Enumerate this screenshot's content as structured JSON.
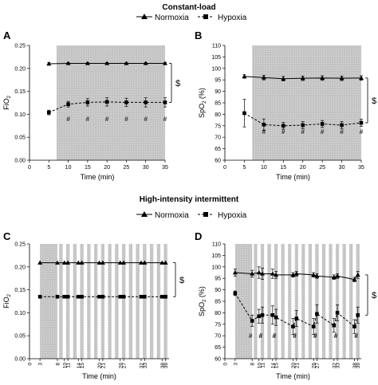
{
  "headers": {
    "constant": "Constant-load",
    "intermittent": "High-intensity intermittent"
  },
  "legend": {
    "normoxia": "Normoxia",
    "hypoxia": "Hypoxia"
  },
  "colors": {
    "ink": "#000000",
    "shade": "#c8c8c8"
  },
  "chart_data": [
    {
      "panel": "A",
      "type": "line",
      "ylabel": "FiO",
      "ylabel_sub": "2",
      "xlabel": "Time (min)",
      "xlim": [
        0,
        35
      ],
      "ylim": [
        0,
        0.25
      ],
      "xticks": [
        "0",
        "5",
        "10",
        "15",
        "20",
        "25",
        "30",
        "35"
      ],
      "xtick_values": [
        0,
        5,
        10,
        15,
        20,
        25,
        30,
        35
      ],
      "yticks": [
        "0.00",
        "0.05",
        "0.10",
        "0.15",
        "0.20",
        "0.25"
      ],
      "ytick_values": [
        0,
        0.05,
        0.1,
        0.15,
        0.2,
        0.25
      ],
      "shaded": [
        [
          7,
          35
        ]
      ],
      "x": [
        5,
        10,
        15,
        20,
        25,
        30,
        35
      ],
      "series": [
        {
          "name": "Normoxia",
          "values": [
            0.21,
            0.211,
            0.211,
            0.211,
            0.211,
            0.211,
            0.211
          ],
          "err": [
            0.003,
            0.002,
            0.002,
            0.002,
            0.002,
            0.002,
            0.002
          ]
        },
        {
          "name": "Hypoxia",
          "values": [
            0.104,
            0.122,
            0.126,
            0.127,
            0.126,
            0.126,
            0.126
          ],
          "err": [
            0.005,
            0.006,
            0.008,
            0.009,
            0.009,
            0.01,
            0.01
          ]
        }
      ],
      "hash_x": [
        10,
        15,
        20,
        25,
        30,
        35
      ],
      "hash_label": "#",
      "hash_y": 0.085,
      "bracket_label": "$"
    },
    {
      "panel": "B",
      "type": "line",
      "ylabel": "SpO",
      "ylabel_sub": "2",
      "ylabel_suffix": " (%)",
      "xlabel": "Time (min)",
      "xlim": [
        0,
        35
      ],
      "ylim": [
        60,
        110
      ],
      "xticks": [
        "0",
        "5",
        "10",
        "15",
        "20",
        "25",
        "30",
        "35"
      ],
      "xtick_values": [
        0,
        5,
        10,
        15,
        20,
        25,
        30,
        35
      ],
      "yticks": [
        "60",
        "65",
        "70",
        "75",
        "80",
        "85",
        "90",
        "95",
        "100",
        "105",
        "110"
      ],
      "ytick_values": [
        60,
        65,
        70,
        75,
        80,
        85,
        90,
        95,
        100,
        105,
        110
      ],
      "shaded": [
        [
          7,
          35
        ]
      ],
      "x": [
        5,
        10,
        15,
        20,
        25,
        30,
        35
      ],
      "series": [
        {
          "name": "Normoxia",
          "values": [
            96.5,
            96.0,
            95.5,
            95.7,
            95.8,
            95.7,
            95.8
          ],
          "err": [
            0.8,
            1.0,
            1.0,
            1.0,
            1.0,
            1.0,
            1.0
          ]
        },
        {
          "name": "Hypoxia",
          "values": [
            80.5,
            75.5,
            75.0,
            75.3,
            75.8,
            75.3,
            76.3
          ],
          "err": [
            6.0,
            2.5,
            1.5,
            1.5,
            1.5,
            1.5,
            1.5
          ]
        }
      ],
      "hash_x": [
        10,
        15,
        20,
        25,
        30,
        35
      ],
      "hash_label": "#",
      "hash_y": 71.5,
      "bracket_label": "$"
    },
    {
      "panel": "C",
      "type": "line",
      "ylabel": "FiO",
      "ylabel_sub": "2",
      "xlabel": "Time (min)",
      "xlim": [
        0,
        40
      ],
      "ylim": [
        0,
        0.25
      ],
      "xticks": [
        "0",
        "3",
        "8",
        "10",
        "11",
        "14",
        "15",
        "20",
        "21",
        "26",
        "27",
        "32",
        "33",
        "38",
        "39"
      ],
      "xtick_values": [
        0,
        3,
        8,
        10,
        11,
        14,
        15,
        20,
        21,
        26,
        27,
        32,
        33,
        38,
        39
      ],
      "yticks": [
        "0.00",
        "0.05",
        "0.10",
        "0.15",
        "0.20",
        "0.25"
      ],
      "ytick_values": [
        0,
        0.05,
        0.1,
        0.15,
        0.2,
        0.25
      ],
      "shaded": [
        [
          3,
          8
        ],
        [
          8.5,
          9.5
        ],
        [
          10.5,
          11.5
        ],
        [
          12.5,
          13.5
        ],
        [
          14.5,
          15.5
        ],
        [
          16.5,
          17.5
        ],
        [
          18.5,
          19.5
        ],
        [
          20.5,
          21.5
        ],
        [
          22.5,
          23.5
        ],
        [
          24.5,
          25.5
        ],
        [
          26.5,
          27.5
        ],
        [
          28.5,
          29.5
        ],
        [
          30.5,
          31.5
        ],
        [
          32.5,
          33.5
        ],
        [
          34.5,
          35.5
        ],
        [
          36.5,
          37.5
        ],
        [
          38.5,
          39.5
        ]
      ],
      "x": [
        3,
        8,
        10,
        11,
        14,
        15,
        20,
        21,
        26,
        27,
        32,
        33,
        38,
        39
      ],
      "series": [
        {
          "name": "Normoxia",
          "values": [
            0.209,
            0.209,
            0.209,
            0.209,
            0.209,
            0.209,
            0.209,
            0.209,
            0.209,
            0.209,
            0.209,
            0.209,
            0.209,
            0.209
          ]
        },
        {
          "name": "Hypoxia",
          "values": [
            0.135,
            0.135,
            0.135,
            0.135,
            0.135,
            0.135,
            0.135,
            0.135,
            0.135,
            0.135,
            0.135,
            0.135,
            0.135,
            0.135
          ]
        }
      ],
      "bracket_label": "$"
    },
    {
      "panel": "D",
      "type": "line",
      "ylabel": "SpO",
      "ylabel_sub": "2",
      "ylabel_suffix": " (%)",
      "xlabel": "Time (min)",
      "xlim": [
        0,
        40
      ],
      "ylim": [
        60,
        110
      ],
      "xticks": [
        "0",
        "3",
        "8",
        "10",
        "11",
        "14",
        "15",
        "20",
        "21",
        "26",
        "27",
        "32",
        "33",
        "38",
        "39"
      ],
      "xtick_values": [
        0,
        3,
        8,
        10,
        11,
        14,
        15,
        20,
        21,
        26,
        27,
        32,
        33,
        38,
        39
      ],
      "yticks": [
        "60",
        "65",
        "70",
        "75",
        "80",
        "85",
        "90",
        "95",
        "100",
        "105",
        "110"
      ],
      "ytick_values": [
        60,
        65,
        70,
        75,
        80,
        85,
        90,
        95,
        100,
        105,
        110
      ],
      "shaded": [
        [
          3,
          8
        ],
        [
          8.5,
          9.5
        ],
        [
          10.5,
          11.5
        ],
        [
          12.5,
          13.5
        ],
        [
          14.5,
          15.5
        ],
        [
          16.5,
          17.5
        ],
        [
          18.5,
          19.5
        ],
        [
          20.5,
          21.5
        ],
        [
          22.5,
          23.5
        ],
        [
          24.5,
          25.5
        ],
        [
          26.5,
          27.5
        ],
        [
          28.5,
          29.5
        ],
        [
          30.5,
          31.5
        ],
        [
          32.5,
          33.5
        ],
        [
          34.5,
          35.5
        ],
        [
          36.5,
          37.5
        ],
        [
          38.5,
          39.5
        ]
      ],
      "x": [
        3,
        8,
        10,
        11,
        14,
        15,
        20,
        21,
        26,
        27,
        32,
        33,
        38,
        39
      ],
      "series": [
        {
          "name": "Normoxia",
          "values": [
            97.5,
            97.0,
            97.5,
            97.0,
            97.0,
            96.5,
            96.5,
            97.0,
            96.5,
            96.0,
            95.5,
            96.0,
            94.5,
            96.5
          ],
          "err": [
            1.5,
            1.5,
            2.5,
            2.5,
            2.0,
            1.5,
            1.0,
            1.0,
            1.0,
            1.0,
            1.0,
            1.0,
            1.0,
            1.5
          ]
        },
        {
          "name": "Hypoxia",
          "values": [
            88.5,
            76.5,
            78.5,
            79.0,
            79.0,
            78.0,
            74.0,
            77.5,
            74.0,
            79.5,
            74.5,
            80.0,
            74.0,
            79.0
          ],
          "err": [
            1.0,
            2.5,
            3.0,
            3.5,
            4.0,
            3.5,
            3.5,
            3.5,
            3.5,
            4.0,
            3.0,
            3.5,
            3.0,
            3.5
          ]
        }
      ],
      "hash_x": [
        8,
        10,
        11,
        14,
        15,
        20,
        21,
        26,
        27,
        32,
        33,
        38,
        39
      ],
      "hash_label": "#",
      "hash_y": 69,
      "bracket_label": "$"
    }
  ]
}
